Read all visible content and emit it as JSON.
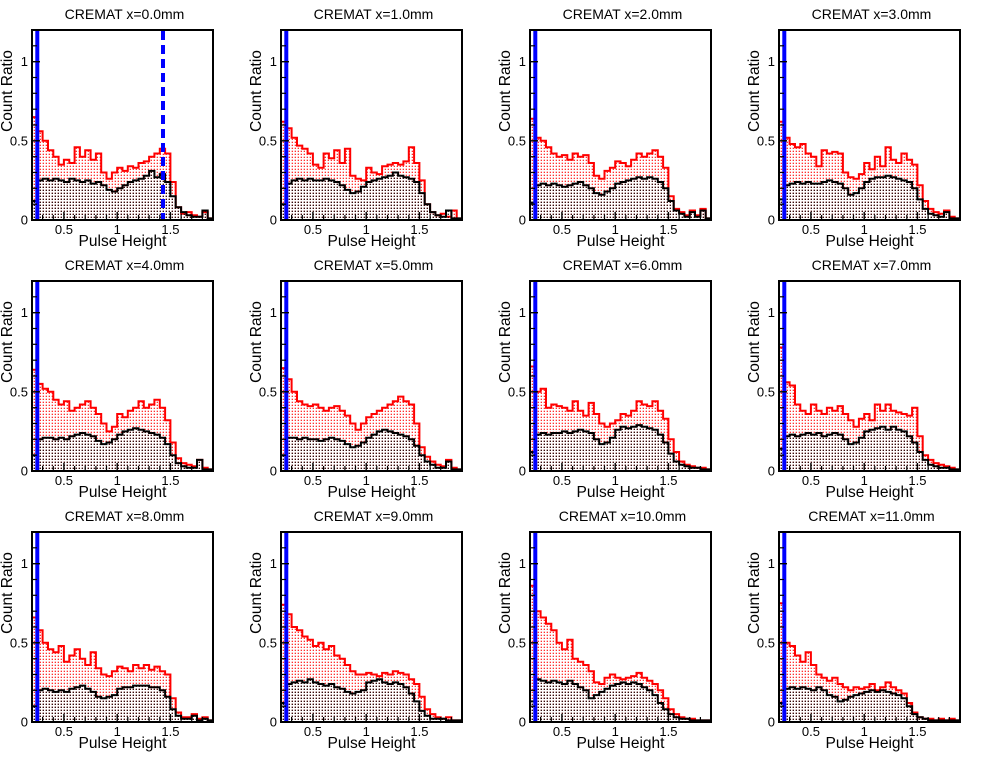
{
  "page": {
    "background": "#ffffff"
  },
  "chart_data": {
    "type": "bar",
    "subtype": "step-histogram-grid",
    "grid": {
      "rows": 3,
      "cols": 4
    },
    "xlabel": "Pulse Height",
    "ylabel": "Count Ratio",
    "xlim": [
      0.2,
      1.9
    ],
    "ylim": [
      0,
      1.2
    ],
    "xticks": [
      0.5,
      1.0,
      1.5
    ],
    "xtick_labels": [
      "0.5",
      "1",
      "1.5"
    ],
    "yticks": [
      0,
      0.5,
      1.0
    ],
    "ytick_labels": [
      "0",
      "0.5",
      "1"
    ],
    "minor_tick_step": 0.1,
    "bin_start": 0.2,
    "bin_width": 0.05,
    "blue_line_x": 0.25,
    "legend": "none",
    "grid_lines": "off",
    "colors": {
      "red_series": "#ff0000",
      "black_series": "#000000",
      "threshold_line": "#0000ff",
      "frame": "#000000",
      "background": "#ffffff"
    },
    "plots": [
      {
        "title": "CREMAT x=0.0mm",
        "dashed_line_x": 1.43,
        "red": [
          0.65,
          0.56,
          0.5,
          0.44,
          0.4,
          0.35,
          0.38,
          0.36,
          0.46,
          0.4,
          0.44,
          0.38,
          0.42,
          0.3,
          0.26,
          0.3,
          0.33,
          0.31,
          0.34,
          0.33,
          0.36,
          0.37,
          0.4,
          0.42,
          0.45,
          0.42,
          0.24,
          0.08,
          0.04,
          0.05,
          0.03,
          0.02,
          0.05,
          0.01
        ],
        "black": [
          0.12,
          0.25,
          0.26,
          0.25,
          0.26,
          0.25,
          0.24,
          0.26,
          0.25,
          0.24,
          0.25,
          0.23,
          0.24,
          0.22,
          0.19,
          0.18,
          0.2,
          0.22,
          0.24,
          0.25,
          0.26,
          0.28,
          0.31,
          0.27,
          0.29,
          0.24,
          0.15,
          0.08,
          0.05,
          0.03,
          0.02,
          0.02,
          0.06,
          0.01
        ]
      },
      {
        "title": "CREMAT x=1.0mm",
        "red": [
          0.62,
          0.58,
          0.52,
          0.47,
          0.45,
          0.42,
          0.35,
          0.33,
          0.42,
          0.39,
          0.44,
          0.36,
          0.45,
          0.28,
          0.26,
          0.25,
          0.33,
          0.3,
          0.29,
          0.34,
          0.35,
          0.36,
          0.35,
          0.37,
          0.46,
          0.36,
          0.25,
          0.1,
          0.05,
          0.03,
          0.04,
          0.02,
          0.06,
          0.01
        ],
        "black": [
          0.1,
          0.23,
          0.25,
          0.26,
          0.25,
          0.26,
          0.25,
          0.25,
          0.26,
          0.25,
          0.24,
          0.22,
          0.19,
          0.17,
          0.18,
          0.21,
          0.24,
          0.25,
          0.26,
          0.27,
          0.28,
          0.3,
          0.28,
          0.27,
          0.26,
          0.24,
          0.17,
          0.1,
          0.05,
          0.03,
          0.02,
          0.06,
          0.01,
          0.01
        ]
      },
      {
        "title": "CREMAT x=2.0mm",
        "red": [
          0.64,
          0.52,
          0.5,
          0.46,
          0.42,
          0.4,
          0.41,
          0.38,
          0.42,
          0.4,
          0.41,
          0.36,
          0.28,
          0.26,
          0.31,
          0.33,
          0.37,
          0.36,
          0.34,
          0.38,
          0.42,
          0.4,
          0.42,
          0.44,
          0.4,
          0.33,
          0.15,
          0.07,
          0.05,
          0.03,
          0.06,
          0.03,
          0.07,
          0.01
        ],
        "black": [
          0.11,
          0.22,
          0.23,
          0.22,
          0.23,
          0.22,
          0.21,
          0.22,
          0.23,
          0.24,
          0.22,
          0.2,
          0.17,
          0.16,
          0.18,
          0.2,
          0.23,
          0.24,
          0.25,
          0.26,
          0.27,
          0.26,
          0.27,
          0.26,
          0.24,
          0.2,
          0.12,
          0.06,
          0.04,
          0.02,
          0.05,
          0.02,
          0.06,
          0.01
        ]
      },
      {
        "title": "CREMAT x=3.0mm",
        "red": [
          0.62,
          0.52,
          0.48,
          0.46,
          0.48,
          0.42,
          0.4,
          0.34,
          0.44,
          0.42,
          0.43,
          0.42,
          0.3,
          0.27,
          0.26,
          0.29,
          0.36,
          0.32,
          0.4,
          0.34,
          0.46,
          0.38,
          0.36,
          0.42,
          0.38,
          0.35,
          0.22,
          0.12,
          0.07,
          0.05,
          0.04,
          0.06,
          0.02,
          0.01
        ],
        "black": [
          0.13,
          0.22,
          0.23,
          0.24,
          0.23,
          0.24,
          0.23,
          0.23,
          0.24,
          0.25,
          0.24,
          0.23,
          0.2,
          0.16,
          0.17,
          0.2,
          0.24,
          0.26,
          0.27,
          0.27,
          0.28,
          0.27,
          0.26,
          0.25,
          0.24,
          0.2,
          0.13,
          0.07,
          0.04,
          0.03,
          0.02,
          0.05,
          0.01,
          0.01
        ]
      },
      {
        "title": "CREMAT x=4.0mm",
        "red": [
          0.64,
          0.55,
          0.52,
          0.5,
          0.45,
          0.42,
          0.44,
          0.38,
          0.4,
          0.42,
          0.44,
          0.4,
          0.36,
          0.3,
          0.25,
          0.28,
          0.36,
          0.34,
          0.38,
          0.4,
          0.44,
          0.4,
          0.42,
          0.45,
          0.4,
          0.32,
          0.18,
          0.08,
          0.05,
          0.04,
          0.03,
          0.07,
          0.02,
          0.01
        ],
        "black": [
          0.1,
          0.2,
          0.21,
          0.21,
          0.2,
          0.21,
          0.2,
          0.22,
          0.23,
          0.24,
          0.23,
          0.22,
          0.19,
          0.17,
          0.18,
          0.2,
          0.23,
          0.25,
          0.26,
          0.27,
          0.26,
          0.25,
          0.24,
          0.23,
          0.21,
          0.17,
          0.1,
          0.05,
          0.03,
          0.02,
          0.02,
          0.07,
          0.01,
          0.01
        ]
      },
      {
        "title": "CREMAT x=5.0mm",
        "red": [
          0.65,
          0.58,
          0.5,
          0.44,
          0.42,
          0.41,
          0.42,
          0.4,
          0.38,
          0.4,
          0.41,
          0.38,
          0.35,
          0.3,
          0.26,
          0.3,
          0.34,
          0.36,
          0.38,
          0.4,
          0.42,
          0.44,
          0.47,
          0.44,
          0.42,
          0.3,
          0.15,
          0.09,
          0.06,
          0.04,
          0.03,
          0.07,
          0.02,
          0.01
        ],
        "black": [
          0.1,
          0.21,
          0.21,
          0.2,
          0.21,
          0.2,
          0.2,
          0.19,
          0.2,
          0.21,
          0.2,
          0.19,
          0.17,
          0.15,
          0.16,
          0.18,
          0.21,
          0.23,
          0.25,
          0.26,
          0.25,
          0.24,
          0.23,
          0.22,
          0.2,
          0.16,
          0.1,
          0.06,
          0.04,
          0.02,
          0.02,
          0.06,
          0.01,
          0.01
        ]
      },
      {
        "title": "CREMAT x=6.0mm",
        "red": [
          0.66,
          0.5,
          0.52,
          0.4,
          0.42,
          0.41,
          0.4,
          0.38,
          0.44,
          0.38,
          0.35,
          0.43,
          0.36,
          0.3,
          0.28,
          0.3,
          0.32,
          0.36,
          0.35,
          0.38,
          0.44,
          0.42,
          0.41,
          0.44,
          0.38,
          0.33,
          0.2,
          0.12,
          0.06,
          0.04,
          0.03,
          0.02,
          0.02,
          0.01
        ],
        "black": [
          0.12,
          0.23,
          0.24,
          0.23,
          0.24,
          0.24,
          0.25,
          0.24,
          0.25,
          0.26,
          0.25,
          0.24,
          0.2,
          0.17,
          0.18,
          0.21,
          0.26,
          0.28,
          0.27,
          0.28,
          0.29,
          0.28,
          0.27,
          0.26,
          0.23,
          0.18,
          0.11,
          0.06,
          0.04,
          0.03,
          0.02,
          0.02,
          0.01,
          0.01
        ]
      },
      {
        "title": "CREMAT x=7.0mm",
        "red": [
          0.78,
          0.56,
          0.54,
          0.42,
          0.38,
          0.36,
          0.42,
          0.38,
          0.36,
          0.4,
          0.38,
          0.41,
          0.36,
          0.32,
          0.28,
          0.33,
          0.36,
          0.32,
          0.42,
          0.38,
          0.42,
          0.38,
          0.37,
          0.36,
          0.35,
          0.4,
          0.22,
          0.1,
          0.07,
          0.05,
          0.04,
          0.03,
          0.02,
          0.01
        ],
        "black": [
          0.14,
          0.22,
          0.23,
          0.22,
          0.23,
          0.24,
          0.23,
          0.24,
          0.22,
          0.23,
          0.24,
          0.23,
          0.2,
          0.17,
          0.18,
          0.21,
          0.25,
          0.26,
          0.27,
          0.28,
          0.26,
          0.28,
          0.26,
          0.25,
          0.22,
          0.18,
          0.12,
          0.07,
          0.04,
          0.03,
          0.02,
          0.02,
          0.01,
          0.01
        ]
      },
      {
        "title": "CREMAT x=8.0mm",
        "red": [
          0.66,
          0.58,
          0.5,
          0.46,
          0.44,
          0.48,
          0.38,
          0.42,
          0.46,
          0.4,
          0.36,
          0.44,
          0.34,
          0.3,
          0.29,
          0.32,
          0.35,
          0.34,
          0.32,
          0.36,
          0.34,
          0.36,
          0.33,
          0.35,
          0.32,
          0.3,
          0.15,
          0.06,
          0.03,
          0.03,
          0.05,
          0.02,
          0.03,
          0.01
        ],
        "black": [
          0.1,
          0.2,
          0.21,
          0.2,
          0.19,
          0.2,
          0.19,
          0.21,
          0.22,
          0.23,
          0.21,
          0.19,
          0.16,
          0.15,
          0.16,
          0.17,
          0.21,
          0.22,
          0.22,
          0.23,
          0.23,
          0.23,
          0.22,
          0.22,
          0.2,
          0.16,
          0.08,
          0.04,
          0.02,
          0.02,
          0.04,
          0.01,
          0.02,
          0.01
        ]
      },
      {
        "title": "CREMAT x=9.0mm",
        "red": [
          0.74,
          0.68,
          0.6,
          0.58,
          0.54,
          0.52,
          0.48,
          0.5,
          0.46,
          0.48,
          0.42,
          0.4,
          0.36,
          0.32,
          0.3,
          0.3,
          0.31,
          0.3,
          0.29,
          0.31,
          0.3,
          0.32,
          0.31,
          0.3,
          0.27,
          0.24,
          0.16,
          0.08,
          0.05,
          0.03,
          0.02,
          0.03,
          0.01,
          0.01
        ],
        "black": [
          0.12,
          0.24,
          0.25,
          0.26,
          0.25,
          0.27,
          0.25,
          0.24,
          0.23,
          0.24,
          0.22,
          0.21,
          0.19,
          0.18,
          0.19,
          0.2,
          0.25,
          0.26,
          0.27,
          0.25,
          0.24,
          0.25,
          0.24,
          0.22,
          0.18,
          0.13,
          0.07,
          0.04,
          0.02,
          0.02,
          0.02,
          0.01,
          0.01,
          0.01
        ]
      },
      {
        "title": "CREMAT x=10.0mm",
        "red": [
          0.86,
          0.7,
          0.66,
          0.62,
          0.58,
          0.5,
          0.46,
          0.52,
          0.4,
          0.38,
          0.36,
          0.32,
          0.25,
          0.24,
          0.28,
          0.3,
          0.28,
          0.27,
          0.28,
          0.29,
          0.31,
          0.28,
          0.26,
          0.24,
          0.2,
          0.15,
          0.08,
          0.05,
          0.03,
          0.02,
          0.02,
          0.01,
          0.01,
          0.01
        ],
        "black": [
          0.13,
          0.27,
          0.26,
          0.25,
          0.26,
          0.25,
          0.24,
          0.26,
          0.24,
          0.22,
          0.2,
          0.15,
          0.17,
          0.19,
          0.21,
          0.23,
          0.24,
          0.25,
          0.24,
          0.25,
          0.24,
          0.22,
          0.2,
          0.17,
          0.12,
          0.08,
          0.05,
          0.03,
          0.02,
          0.02,
          0.01,
          0.01,
          0.01,
          0.01
        ]
      },
      {
        "title": "CREMAT x=11.0mm",
        "red": [
          0.75,
          0.5,
          0.48,
          0.42,
          0.38,
          0.44,
          0.36,
          0.3,
          0.28,
          0.26,
          0.28,
          0.24,
          0.22,
          0.2,
          0.22,
          0.21,
          0.22,
          0.24,
          0.2,
          0.22,
          0.25,
          0.22,
          0.2,
          0.18,
          0.12,
          0.06,
          0.03,
          0.02,
          0.02,
          0.01,
          0.02,
          0.01,
          0.02,
          0.01
        ],
        "black": [
          0.12,
          0.21,
          0.22,
          0.21,
          0.22,
          0.21,
          0.2,
          0.22,
          0.2,
          0.17,
          0.16,
          0.13,
          0.14,
          0.16,
          0.17,
          0.18,
          0.19,
          0.2,
          0.19,
          0.2,
          0.19,
          0.18,
          0.17,
          0.15,
          0.1,
          0.05,
          0.03,
          0.02,
          0.01,
          0.01,
          0.01,
          0.01,
          0.01,
          0.01
        ]
      }
    ]
  }
}
